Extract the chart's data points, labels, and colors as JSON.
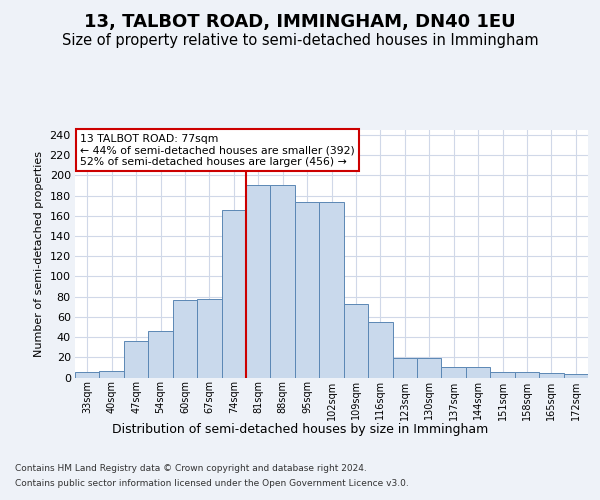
{
  "title": "13, TALBOT ROAD, IMMINGHAM, DN40 1EU",
  "subtitle": "Size of property relative to semi-detached houses in Immingham",
  "xlabel": "Distribution of semi-detached houses by size in Immingham",
  "ylabel": "Number of semi-detached properties",
  "footnote1": "Contains HM Land Registry data © Crown copyright and database right 2024.",
  "footnote2": "Contains public sector information licensed under the Open Government Licence v3.0.",
  "bar_labels": [
    "33sqm",
    "40sqm",
    "47sqm",
    "54sqm",
    "60sqm",
    "67sqm",
    "74sqm",
    "81sqm",
    "88sqm",
    "95sqm",
    "102sqm",
    "109sqm",
    "116sqm",
    "123sqm",
    "130sqm",
    "137sqm",
    "144sqm",
    "151sqm",
    "158sqm",
    "165sqm",
    "172sqm"
  ],
  "bar_values": [
    5,
    6,
    36,
    46,
    77,
    78,
    166,
    191,
    191,
    174,
    174,
    73,
    55,
    19,
    19,
    10,
    10,
    5,
    5,
    4,
    3
  ],
  "bar_color": "#c9d9ec",
  "bar_edge_color": "#5b87b5",
  "marker_pct_smaller": 44,
  "marker_count_smaller": 392,
  "marker_pct_larger": 52,
  "marker_count_larger": 456,
  "vline_color": "#cc0000",
  "annotation_box_edge": "#cc0000",
  "ylim": [
    0,
    245
  ],
  "grid_color": "#d0d8e8",
  "bg_color": "#eef2f8",
  "plot_bg": "#ffffff",
  "title_fontsize": 13,
  "subtitle_fontsize": 10.5
}
